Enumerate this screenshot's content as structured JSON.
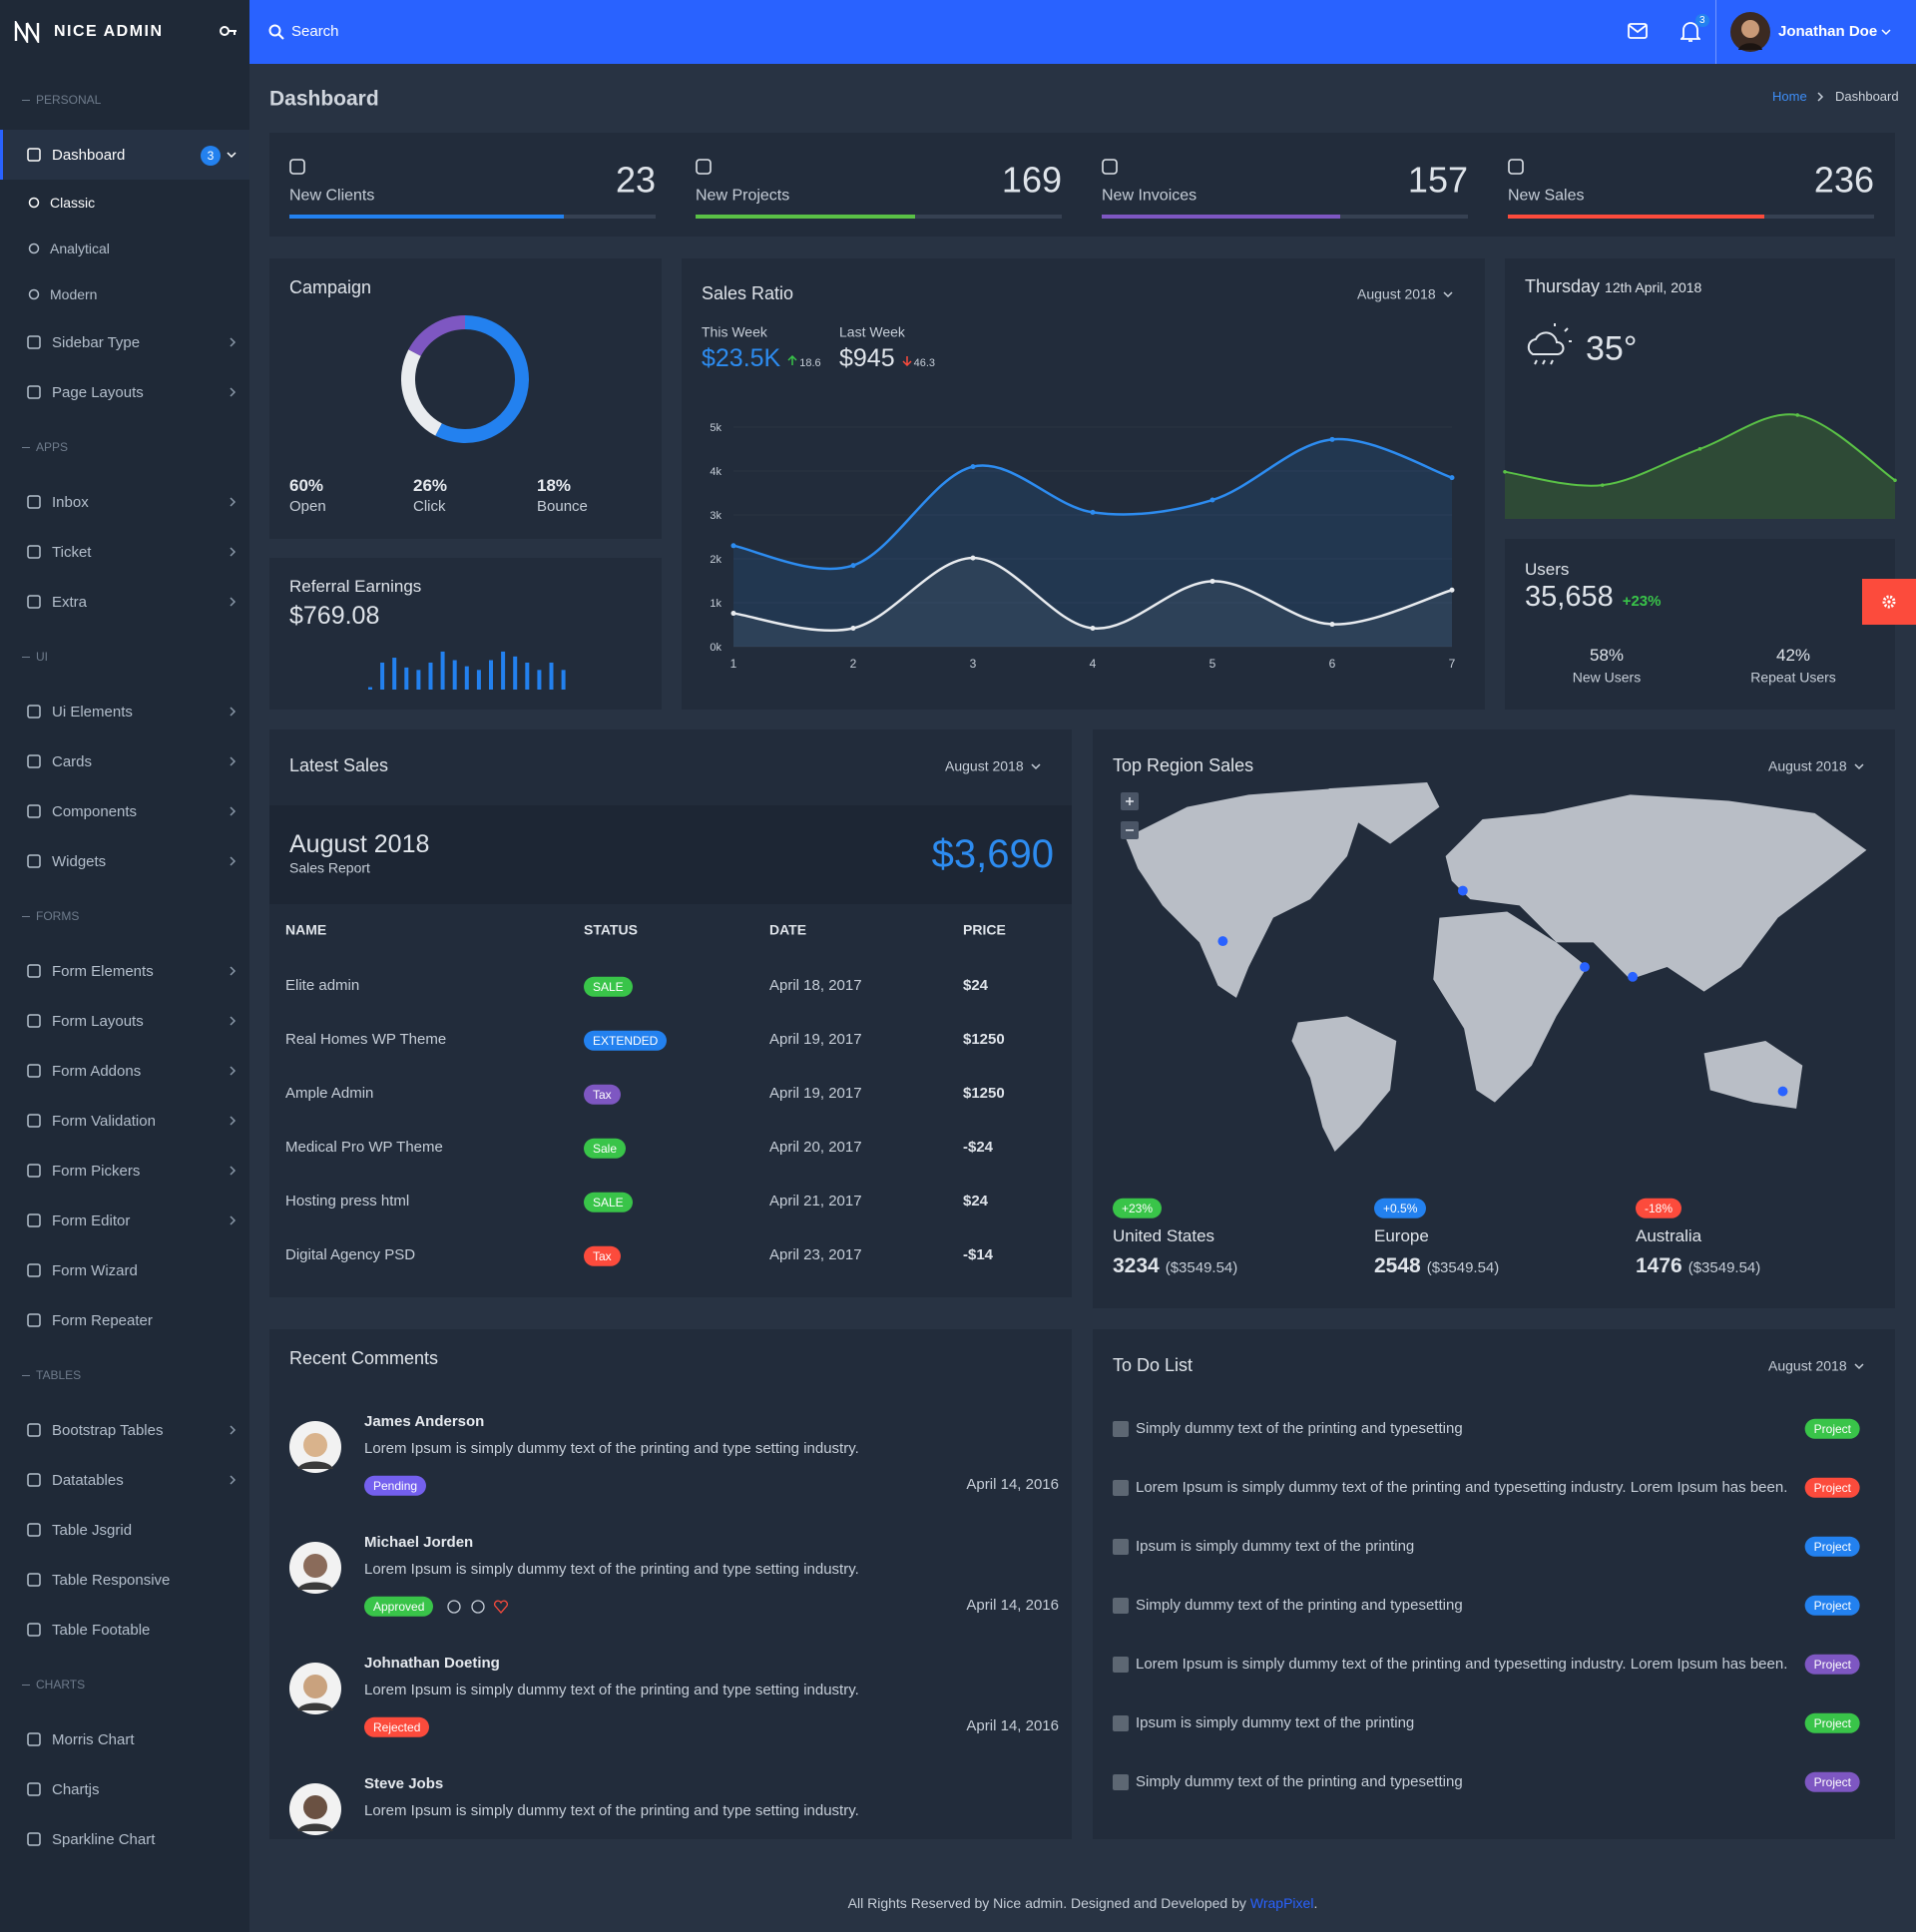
{
  "brand": "NICE ADMIN",
  "search": "Search",
  "notifications": 3,
  "user": "Jonathan Doe",
  "sidebar": {
    "sections": [
      {
        "title": "PERSONAL",
        "items": [
          {
            "label": "Dashboard",
            "badge": 3,
            "children": [
              "Classic",
              "Analytical",
              "Modern"
            ]
          },
          {
            "label": "Sidebar Type",
            "submenu": true
          },
          {
            "label": "Page Layouts",
            "submenu": true
          }
        ]
      },
      {
        "title": "APPS",
        "items": [
          {
            "label": "Inbox",
            "submenu": true
          },
          {
            "label": "Ticket",
            "submenu": true
          },
          {
            "label": "Extra",
            "submenu": true
          }
        ]
      },
      {
        "title": "UI",
        "items": [
          {
            "label": "Ui Elements",
            "submenu": true
          },
          {
            "label": "Cards",
            "submenu": true
          },
          {
            "label": "Components",
            "submenu": true
          },
          {
            "label": "Widgets",
            "submenu": true
          }
        ]
      },
      {
        "title": "FORMS",
        "items": [
          {
            "label": "Form Elements",
            "submenu": true
          },
          {
            "label": "Form Layouts",
            "submenu": true
          },
          {
            "label": "Form Addons",
            "submenu": true
          },
          {
            "label": "Form Validation",
            "submenu": true
          },
          {
            "label": "Form Pickers",
            "submenu": true
          },
          {
            "label": "Form Editor",
            "submenu": true
          },
          {
            "label": "Form Wizard"
          },
          {
            "label": "Form Repeater"
          }
        ]
      },
      {
        "title": "TABLES",
        "items": [
          {
            "label": "Bootstrap Tables",
            "submenu": true
          },
          {
            "label": "Datatables",
            "submenu": true
          },
          {
            "label": "Table Jsgrid"
          },
          {
            "label": "Table Responsive"
          },
          {
            "label": "Table Footable"
          }
        ]
      },
      {
        "title": "CHARTS",
        "items": [
          {
            "label": "Morris Chart"
          },
          {
            "label": "Chartjs"
          },
          {
            "label": "Sparkline Chart"
          }
        ]
      }
    ]
  },
  "page_title": "Dashboard",
  "breadcrumb": [
    "Home",
    "Dashboard"
  ],
  "stats": [
    {
      "label": "New Clients",
      "value": 23,
      "progress": 75,
      "color": "#2381ef"
    },
    {
      "label": "New Projects",
      "value": 169,
      "progress": 60,
      "color": "#5ac146"
    },
    {
      "label": "New Invoices",
      "value": 157,
      "progress": 65,
      "color": "#7e57c2"
    },
    {
      "label": "New Sales",
      "value": 236,
      "progress": 70,
      "color": "#fc4b3c"
    }
  ],
  "campaign": {
    "title": "Campaign",
    "values": [
      60,
      26,
      18
    ],
    "value_labels": [
      "60%",
      "26%",
      "18%"
    ],
    "labels": [
      "Open",
      "Click",
      "Bounce"
    ],
    "colors": [
      "#2381ef",
      "#e9ecef",
      "#7e57c2"
    ]
  },
  "referral": {
    "title": "Referral Earnings",
    "amount": "$769.08",
    "bars": [
      2,
      22,
      26,
      18,
      16,
      22,
      31,
      24,
      19,
      16,
      24,
      31,
      27,
      22,
      16,
      22,
      16
    ],
    "ylim": [
      0,
      35
    ],
    "color": "#2381ef"
  },
  "sales_ratio": {
    "title": "Sales Ratio",
    "period": "August 2018",
    "this_week": {
      "label": "This Week",
      "amount": "$23.5K",
      "change": 18.6
    },
    "last_week": {
      "label": "Last Week",
      "amount": "$945",
      "change": 46.3
    },
    "chart": {
      "type": "line",
      "x": [
        1,
        2,
        3,
        4,
        5,
        6,
        7
      ],
      "xlim": [
        1,
        7
      ],
      "ylim": [
        0,
        5000
      ],
      "yticks": [
        {
          "value": 0,
          "label": "0k"
        },
        {
          "value": 1000,
          "label": "1k"
        },
        {
          "value": 2000,
          "label": "2k"
        },
        {
          "value": 3000,
          "label": "3k"
        },
        {
          "value": 4000,
          "label": "4k"
        },
        {
          "value": 5000,
          "label": "5k"
        }
      ],
      "series": [
        {
          "color": "#2d8cf0",
          "values": [
            2300,
            1850,
            4100,
            3060,
            3340,
            4720,
            3850
          ]
        },
        {
          "color": "#e8ebef",
          "values": [
            760,
            420,
            2020,
            420,
            1490,
            510,
            1290
          ]
        }
      ]
    }
  },
  "weather": {
    "day": "Thursday",
    "date": "12th April, 2018",
    "temperature": "35°",
    "trend": {
      "values": [
        39,
        28,
        58,
        86,
        32
      ],
      "ylim": [
        0,
        100
      ],
      "color": "#5ac146"
    }
  },
  "users": {
    "title": "Users",
    "count": "35,658",
    "change": "+23%",
    "split": [
      {
        "value": "58%",
        "label": "New Users"
      },
      {
        "value": "42%",
        "label": "Repeat Users"
      }
    ]
  },
  "latest_sales": {
    "title": "Latest Sales",
    "period": "August 2018",
    "report_month": "August 2018",
    "report_label": "Sales Report",
    "total": "$3,690",
    "columns": [
      "NAME",
      "STATUS",
      "DATE",
      "PRICE"
    ],
    "rows": [
      {
        "name": "Elite admin",
        "status": "SALE",
        "status_color": "#39c449",
        "date": "April 18, 2017",
        "price": "$24"
      },
      {
        "name": "Real Homes WP Theme",
        "status": "EXTENDED",
        "status_color": "#2381ef",
        "date": "April 19, 2017",
        "price": "$1250"
      },
      {
        "name": "Ample Admin",
        "status": "Tax",
        "status_color": "#7e57c2",
        "date": "April 19, 2017",
        "price": "$1250"
      },
      {
        "name": "Medical Pro WP Theme",
        "status": "Sale",
        "status_color": "#39c449",
        "date": "April 20, 2017",
        "price": "-$24"
      },
      {
        "name": "Hosting press html",
        "status": "SALE",
        "status_color": "#39c449",
        "date": "April 21, 2017",
        "price": "$24"
      },
      {
        "name": "Digital Agency PSD",
        "status": "Tax",
        "status_color": "#fc4b3c",
        "date": "April 23, 2017",
        "price": "-$14"
      }
    ]
  },
  "top_region": {
    "title": "Top Region Sales",
    "period": "August 2018",
    "regions": [
      {
        "change": "+23%",
        "change_color": "#39c449",
        "name": "United States",
        "value": 3234,
        "amount": "($3549.54)"
      },
      {
        "change": "+0.5%",
        "change_color": "#2381ef",
        "name": "Europe",
        "value": 2548,
        "amount": "($3549.54)"
      },
      {
        "change": "-18%",
        "change_color": "#fc4b3c",
        "name": "Australia",
        "value": 1476,
        "amount": "($3549.54)"
      }
    ]
  },
  "recent_comments": {
    "title": "Recent Comments",
    "items": [
      {
        "name": "James Anderson",
        "text": "Lorem Ipsum is simply dummy text of the printing and type setting industry.",
        "status": "Pending",
        "status_color": "#7460ee",
        "date": "April 14, 2016"
      },
      {
        "name": "Michael Jorden",
        "text": "Lorem Ipsum is simply dummy text of the printing and type setting industry.",
        "status": "Approved",
        "status_color": "#39c449",
        "date": "April 14, 2016"
      },
      {
        "name": "Johnathan Doeting",
        "text": "Lorem Ipsum is simply dummy text of the printing and type setting industry.",
        "status": "Rejected",
        "status_color": "#fc4b3c",
        "date": "April 14, 2016"
      },
      {
        "name": "Steve Jobs",
        "text": "Lorem Ipsum is simply dummy text of the printing and type setting industry."
      }
    ]
  },
  "todo": {
    "title": "To Do List",
    "period": "August 2018",
    "items": [
      {
        "text": "Simply dummy text of the printing and typesetting",
        "badge": "Project",
        "color": "#39c449"
      },
      {
        "text": "Lorem Ipsum is simply dummy text of the printing and typesetting industry. Lorem Ipsum has been.",
        "badge": "Project",
        "color": "#fc4b3c"
      },
      {
        "text": "Ipsum is simply dummy text of the printing",
        "badge": "Project",
        "color": "#2381ef"
      },
      {
        "text": "Simply dummy text of the printing and typesetting",
        "badge": "Project",
        "color": "#2381ef"
      },
      {
        "text": "Lorem Ipsum is simply dummy text of the printing and typesetting industry. Lorem Ipsum has been.",
        "badge": "Project",
        "color": "#7e57c2"
      },
      {
        "text": "Ipsum is simply dummy text of the printing",
        "badge": "Project",
        "color": "#39c449"
      },
      {
        "text": "Simply dummy text of the printing and typesetting",
        "badge": "Project",
        "color": "#7e57c2"
      }
    ]
  },
  "footer": {
    "text": "All Rights Reserved by Nice admin. Designed and Developed by",
    "link": "WrapPixel",
    "end": "."
  }
}
